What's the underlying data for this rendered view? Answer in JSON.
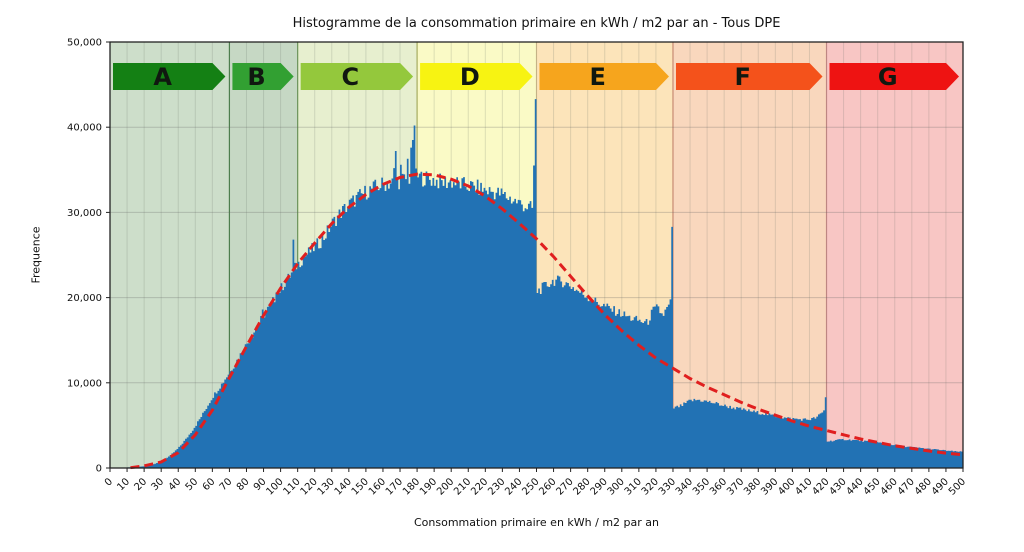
{
  "chart_data": {
    "type": "bar",
    "subtype": "histogram",
    "title": "Histogramme de la consommation primaire en kWh / m2 par an - Tous DPE",
    "xlabel": "Consommation primaire en kWh / m2 par an",
    "ylabel": "Frequence",
    "xlim": [
      0,
      500
    ],
    "ylim": [
      0,
      50000
    ],
    "x_tick_step": 10,
    "y_tick_step": 10000,
    "grid": true,
    "bin_width": 1,
    "bar_color": "#2272b4",
    "curve_color": "#e01f1f",
    "frame_color": "#222222",
    "dpe_bands": [
      {
        "label": "A",
        "range": [
          0,
          70
        ],
        "arrow_color": "#148014",
        "bg_color": "#cddeca",
        "edge_color": "#3c783c"
      },
      {
        "label": "B",
        "range": [
          70,
          110
        ],
        "arrow_color": "#32a032",
        "bg_color": "#c6d8c4",
        "edge_color": "#3c783c"
      },
      {
        "label": "C",
        "range": [
          110,
          180
        ],
        "arrow_color": "#94c83c",
        "bg_color": "#e7efcf",
        "edge_color": "#64954e"
      },
      {
        "label": "D",
        "range": [
          180,
          250
        ],
        "arrow_color": "#f7f312",
        "bg_color": "#fafac6",
        "edge_color": "#aeb356"
      },
      {
        "label": "E",
        "range": [
          250,
          330
        ],
        "arrow_color": "#f6a51d",
        "bg_color": "#fce4ba",
        "edge_color": "#d9c08a"
      },
      {
        "label": "F",
        "range": [
          330,
          420
        ],
        "arrow_color": "#f4521b",
        "bg_color": "#f9d7bd",
        "edge_color": "#d98970"
      },
      {
        "label": "G",
        "range": [
          420,
          500
        ],
        "arrow_color": "#ee1312",
        "bg_color": "#f8c6c4",
        "edge_color": "#d28585"
      }
    ],
    "envelope": [
      [
        0,
        20
      ],
      [
        10,
        60
      ],
      [
        20,
        200
      ],
      [
        25,
        400
      ],
      [
        30,
        800
      ],
      [
        35,
        1400
      ],
      [
        40,
        2300
      ],
      [
        45,
        3500
      ],
      [
        50,
        4900
      ],
      [
        55,
        6500
      ],
      [
        60,
        8300
      ],
      [
        65,
        9700
      ],
      [
        70,
        11200
      ],
      [
        75,
        12800
      ],
      [
        80,
        14500
      ],
      [
        85,
        16200
      ],
      [
        90,
        17900
      ],
      [
        95,
        19400
      ],
      [
        100,
        21000
      ],
      [
        105,
        22400
      ],
      [
        110,
        23900
      ],
      [
        115,
        25000
      ],
      [
        120,
        25900
      ],
      [
        125,
        26900
      ],
      [
        130,
        28600
      ],
      [
        135,
        29900
      ],
      [
        140,
        30900
      ],
      [
        145,
        31700
      ],
      [
        150,
        32400
      ],
      [
        155,
        32900
      ],
      [
        160,
        33300
      ],
      [
        165,
        33500
      ],
      [
        170,
        33700
      ],
      [
        175,
        34000
      ],
      [
        180,
        34200
      ],
      [
        185,
        34000
      ],
      [
        190,
        33800
      ],
      [
        195,
        33500
      ],
      [
        200,
        33600
      ],
      [
        205,
        33300
      ],
      [
        210,
        33100
      ],
      [
        215,
        32900
      ],
      [
        220,
        32600
      ],
      [
        225,
        32400
      ],
      [
        230,
        32100
      ],
      [
        235,
        31600
      ],
      [
        240,
        31100
      ],
      [
        245,
        30600
      ],
      [
        249.9,
        30300
      ],
      [
        250,
        20700
      ],
      [
        255,
        21300
      ],
      [
        260,
        22000
      ],
      [
        265,
        21900
      ],
      [
        270,
        21400
      ],
      [
        275,
        20700
      ],
      [
        280,
        20100
      ],
      [
        285,
        19500
      ],
      [
        290,
        19000
      ],
      [
        295,
        18500
      ],
      [
        300,
        18100
      ],
      [
        305,
        17600
      ],
      [
        310,
        17300
      ],
      [
        315,
        17000
      ],
      [
        318,
        18400
      ],
      [
        321,
        18800
      ],
      [
        324,
        17900
      ],
      [
        327,
        18800
      ],
      [
        329.9,
        20000
      ],
      [
        330,
        7000
      ],
      [
        335,
        7300
      ],
      [
        340,
        7900
      ],
      [
        345,
        8000
      ],
      [
        350,
        7800
      ],
      [
        355,
        7600
      ],
      [
        360,
        7300
      ],
      [
        365,
        7100
      ],
      [
        370,
        6900
      ],
      [
        375,
        6700
      ],
      [
        380,
        6500
      ],
      [
        385,
        6300
      ],
      [
        390,
        6100
      ],
      [
        395,
        5900
      ],
      [
        400,
        5800
      ],
      [
        405,
        5700
      ],
      [
        410,
        5700
      ],
      [
        414,
        5900
      ],
      [
        417,
        6400
      ],
      [
        419.9,
        7000
      ],
      [
        420,
        3100
      ],
      [
        425,
        3250
      ],
      [
        430,
        3350
      ],
      [
        435,
        3300
      ],
      [
        440,
        3200
      ],
      [
        445,
        3100
      ],
      [
        450,
        3000
      ],
      [
        455,
        2850
      ],
      [
        460,
        2700
      ],
      [
        465,
        2550
      ],
      [
        470,
        2450
      ],
      [
        475,
        2350
      ],
      [
        480,
        2250
      ],
      [
        485,
        2150
      ],
      [
        490,
        2050
      ],
      [
        495,
        1950
      ],
      [
        500,
        1900
      ]
    ],
    "spikes": [
      [
        89,
        18600
      ],
      [
        97,
        20600
      ],
      [
        107,
        26800
      ],
      [
        124,
        27400
      ],
      [
        166,
        35200
      ],
      [
        167,
        37200
      ],
      [
        170,
        35600
      ],
      [
        174,
        36300
      ],
      [
        176,
        37600
      ],
      [
        177,
        38500
      ],
      [
        178,
        40200
      ],
      [
        248,
        35500
      ],
      [
        249,
        43300
      ],
      [
        329,
        28300
      ],
      [
        419,
        8300
      ]
    ],
    "curve": [
      [
        12,
        30
      ],
      [
        20,
        250
      ],
      [
        30,
        700
      ],
      [
        40,
        1800
      ],
      [
        50,
        3900
      ],
      [
        60,
        6800
      ],
      [
        70,
        10600
      ],
      [
        80,
        14300
      ],
      [
        90,
        17900
      ],
      [
        100,
        21100
      ],
      [
        110,
        24000
      ],
      [
        120,
        26400
      ],
      [
        130,
        28700
      ],
      [
        140,
        30600
      ],
      [
        150,
        32100
      ],
      [
        160,
        33300
      ],
      [
        170,
        34100
      ],
      [
        180,
        34500
      ],
      [
        190,
        34400
      ],
      [
        200,
        33900
      ],
      [
        210,
        33100
      ],
      [
        220,
        31900
      ],
      [
        230,
        30400
      ],
      [
        240,
        28700
      ],
      [
        250,
        26900
      ],
      [
        260,
        24800
      ],
      [
        270,
        22500
      ],
      [
        280,
        20200
      ],
      [
        290,
        18000
      ],
      [
        300,
        16100
      ],
      [
        310,
        14400
      ],
      [
        320,
        12900
      ],
      [
        330,
        11700
      ],
      [
        340,
        10500
      ],
      [
        350,
        9500
      ],
      [
        360,
        8600
      ],
      [
        370,
        7700
      ],
      [
        380,
        6900
      ],
      [
        390,
        6200
      ],
      [
        400,
        5500
      ],
      [
        410,
        4900
      ],
      [
        420,
        4400
      ],
      [
        430,
        3900
      ],
      [
        440,
        3400
      ],
      [
        450,
        3000
      ],
      [
        460,
        2600
      ],
      [
        470,
        2300
      ],
      [
        480,
        2000
      ],
      [
        490,
        1750
      ],
      [
        500,
        1550
      ]
    ]
  }
}
